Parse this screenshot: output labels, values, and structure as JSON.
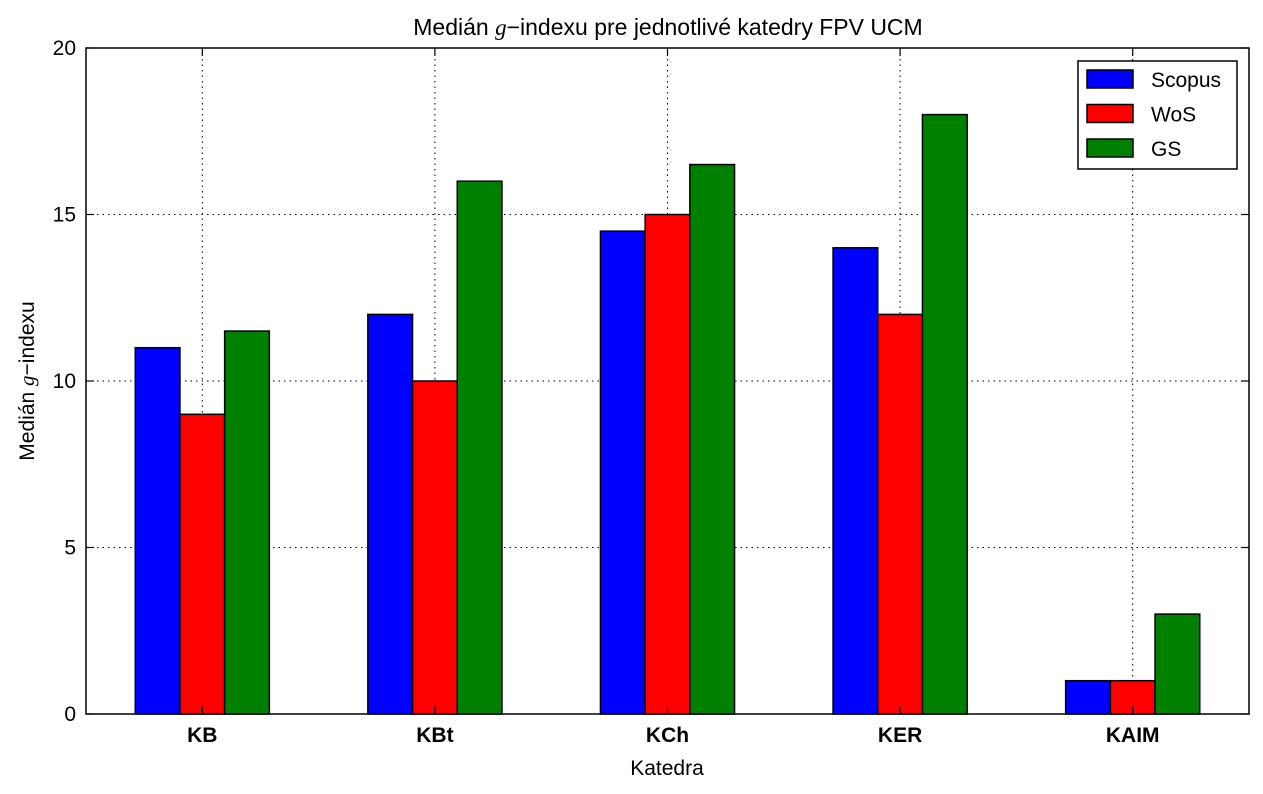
{
  "chart_data": {
    "type": "bar",
    "title_parts": [
      "Medián ",
      "g",
      "−indexu pre jednotlivé katedry FPV UCM"
    ],
    "xlabel": "Katedra",
    "ylabel_parts": [
      "Medián ",
      "g",
      "−indexu"
    ],
    "categories": [
      "KB",
      "KBt",
      "KCh",
      "KER",
      "KAIM"
    ],
    "series": [
      {
        "name": "Scopus",
        "color": "#0000ff",
        "values": [
          11,
          12,
          14.5,
          14,
          1
        ]
      },
      {
        "name": "WoS",
        "color": "#ff0000",
        "values": [
          9,
          10,
          15,
          12,
          1
        ]
      },
      {
        "name": "GS",
        "color": "#008000",
        "values": [
          11.5,
          16,
          16.5,
          18,
          3
        ]
      }
    ],
    "ylim": [
      0,
      20
    ],
    "yticks": [
      "0",
      "5",
      "10",
      "15",
      "20"
    ],
    "ytick_values": [
      0,
      5,
      10,
      15,
      20
    ],
    "grid": true,
    "legend_position": "top-right"
  }
}
